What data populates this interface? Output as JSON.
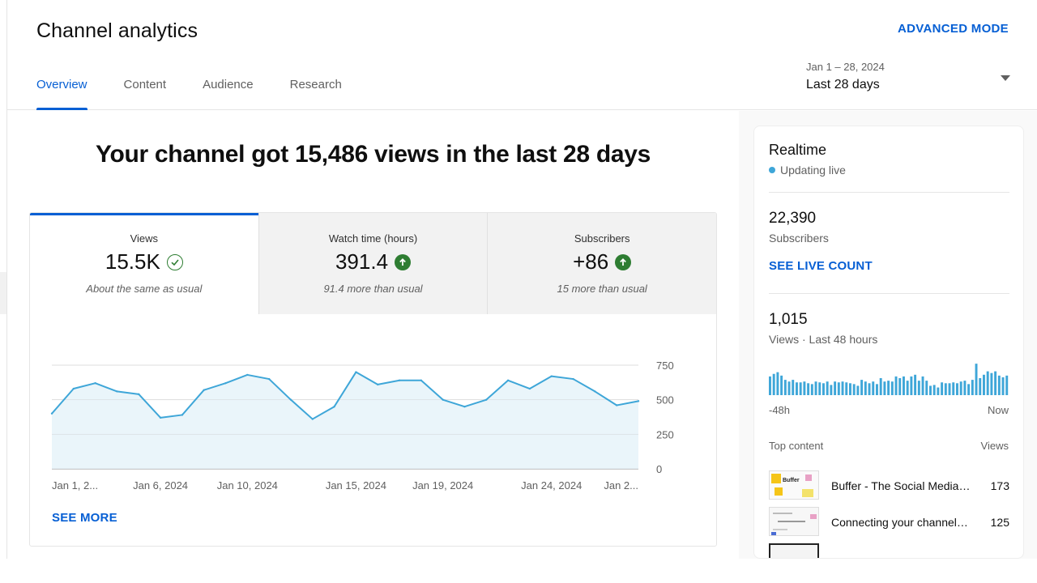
{
  "header": {
    "title": "Channel analytics",
    "advanced_mode": "ADVANCED MODE",
    "tabs": [
      {
        "label": "Overview",
        "active": true
      },
      {
        "label": "Content",
        "active": false
      },
      {
        "label": "Audience",
        "active": false
      },
      {
        "label": "Research",
        "active": false
      }
    ],
    "date_range": {
      "sub": "Jan 1 – 28, 2024",
      "main": "Last 28 days"
    }
  },
  "headline": "Your channel got 15,486 views in the last 28 days",
  "metrics": [
    {
      "label": "Views",
      "value": "15.5K",
      "note": "About the same as usual",
      "icon": "check-circle-icon"
    },
    {
      "label": "Watch time (hours)",
      "value": "391.4",
      "note": "91.4 more than usual",
      "icon": "arrow-up-circle-icon"
    },
    {
      "label": "Subscribers",
      "value": "+86",
      "note": "15 more than usual",
      "icon": "arrow-up-circle-icon"
    }
  ],
  "see_more": "SEE MORE",
  "chart_data": {
    "type": "area",
    "x": [
      "Jan 1",
      "Jan 2",
      "Jan 3",
      "Jan 4",
      "Jan 5",
      "Jan 6",
      "Jan 7",
      "Jan 8",
      "Jan 9",
      "Jan 10",
      "Jan 11",
      "Jan 12",
      "Jan 13",
      "Jan 14",
      "Jan 15",
      "Jan 16",
      "Jan 17",
      "Jan 18",
      "Jan 19",
      "Jan 20",
      "Jan 21",
      "Jan 22",
      "Jan 23",
      "Jan 24",
      "Jan 25",
      "Jan 26",
      "Jan 27",
      "Jan 28"
    ],
    "values": [
      400,
      580,
      620,
      560,
      540,
      370,
      390,
      570,
      620,
      680,
      650,
      500,
      360,
      450,
      700,
      610,
      640,
      640,
      500,
      450,
      500,
      640,
      580,
      670,
      650,
      560,
      460,
      490
    ],
    "ylim": [
      0,
      750
    ],
    "yticks": [
      "750",
      "500",
      "250",
      "0"
    ],
    "xtick_labels": [
      "Jan 1, 2...",
      "Jan 6, 2024",
      "Jan 10, 2024",
      "Jan 15, 2024",
      "Jan 19, 2024",
      "Jan 24, 2024",
      "Jan 2..."
    ],
    "grid": true,
    "colors": {
      "line": "#3ea6d8",
      "fill": "#e6f3f9"
    }
  },
  "realtime": {
    "title": "Realtime",
    "status": "Updating live",
    "subscribers_value": "22,390",
    "subscribers_label": "Subscribers",
    "live_count": "SEE LIVE COUNT",
    "views_value": "1,015",
    "views_label": "Views · Last 48 hours",
    "axis_left": "-48h",
    "axis_right": "Now",
    "bars": [
      22,
      25,
      27,
      23,
      18,
      16,
      18,
      15,
      15,
      16,
      14,
      13,
      16,
      15,
      14,
      16,
      12,
      16,
      15,
      16,
      15,
      14,
      13,
      11,
      18,
      16,
      14,
      16,
      13,
      20,
      16,
      17,
      16,
      22,
      20,
      22,
      17,
      22,
      24,
      17,
      22,
      17,
      11,
      12,
      9,
      15,
      14,
      14,
      15,
      14,
      16,
      17,
      13,
      18,
      37,
      20,
      24,
      28,
      26,
      28,
      23,
      21,
      23
    ],
    "bar_color": "#3ea6d8",
    "top_content_label": "Top content",
    "top_content_views_label": "Views",
    "top_content": [
      {
        "title": "Buffer - The Social Media Tool...",
        "views": "173"
      },
      {
        "title": "Connecting your channel to Buffer",
        "views": "125"
      }
    ]
  }
}
